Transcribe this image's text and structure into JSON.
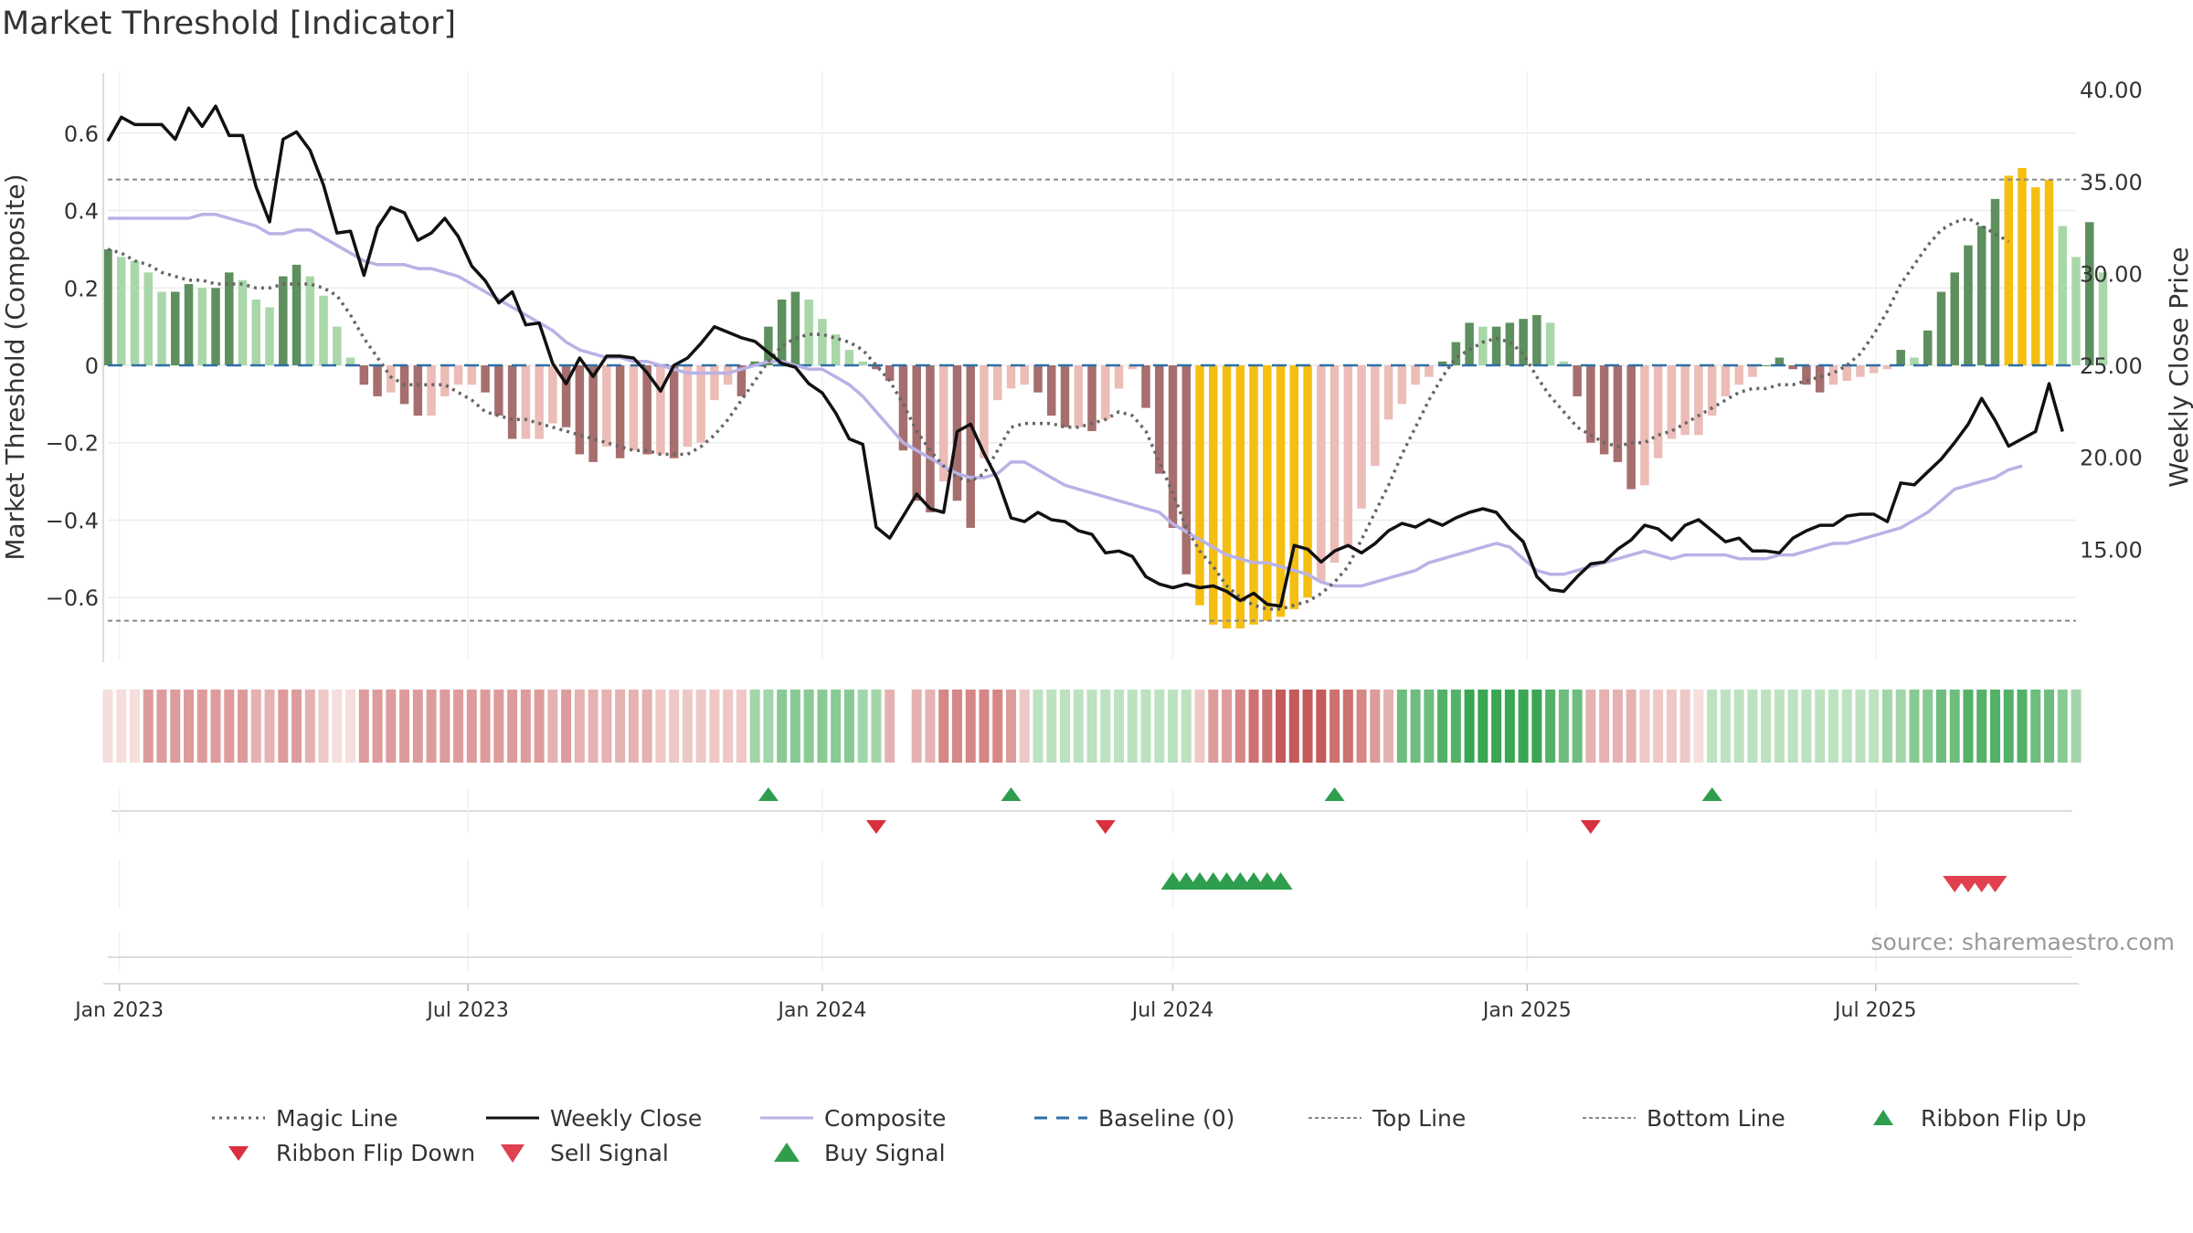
{
  "title": "Market Threshold [Indicator]",
  "source_text": "source: sharemaestro.com",
  "colors": {
    "bar_pos_light": "#a9d7a9",
    "bar_pos_dark": "#5e8f5e",
    "bar_neg_light": "#ecbcb7",
    "bar_neg_dark": "#a76e6e",
    "bar_extreme": "#f5bf12",
    "weekly_close": "#111111",
    "composite": "#b9b2e6",
    "magic": "#666666",
    "baseline": "#2f6fa6",
    "threshold": "#888888",
    "up_marker": "#2e9e4e",
    "down_marker": "#d9303f",
    "sell_marker": "#e0404f"
  },
  "legend": [
    {
      "key": "magic",
      "label": "Magic Line",
      "symbol": "dotted-line",
      "color": "#666666"
    },
    {
      "key": "close",
      "label": "Weekly Close",
      "symbol": "solid-line",
      "color": "#111111"
    },
    {
      "key": "composite",
      "label": "Composite",
      "symbol": "solid-line",
      "color": "#b9b2e6"
    },
    {
      "key": "baseline",
      "label": "Baseline (0)",
      "symbol": "dashed-line",
      "color": "#2f6fa6"
    },
    {
      "key": "top",
      "label": "Top Line",
      "symbol": "dotted-line",
      "color": "#888888"
    },
    {
      "key": "bottom",
      "label": "Bottom Line",
      "symbol": "dotted-line",
      "color": "#888888"
    },
    {
      "key": "flip_up",
      "label": "Ribbon Flip Up",
      "symbol": "triangle-up",
      "color": "#2e9e4e"
    },
    {
      "key": "flip_down",
      "label": "Ribbon Flip Down",
      "symbol": "triangle-down",
      "color": "#d9303f"
    },
    {
      "key": "sell",
      "label": "Sell Signal",
      "symbol": "triangle-down",
      "color": "#e0404f"
    },
    {
      "key": "buy",
      "label": "Buy Signal",
      "symbol": "triangle-up",
      "color": "#2e9e4e"
    }
  ],
  "chart_data": {
    "type": "bar",
    "title": "Market Threshold [Indicator]",
    "ylabel": "Market Threshold (Composite)",
    "y2label": "Weekly Close Price",
    "ylim": [
      -0.76,
      0.76
    ],
    "y2lim": [
      9.0,
      41.0
    ],
    "yticks": [
      0.6,
      0.4,
      0.2,
      0,
      -0.2,
      -0.4,
      -0.6
    ],
    "ytick_labels": [
      "0.6",
      "0.4",
      "0.2",
      "0",
      "−0.2",
      "−0.4",
      "−0.6"
    ],
    "y2ticks": [
      40,
      35,
      30,
      25,
      20,
      15
    ],
    "y2tick_labels": [
      "40.00",
      "35.00",
      "30.00",
      "25.00",
      "20.00",
      "15.00"
    ],
    "xticks": [
      "2023-01-01",
      "2023-07-01",
      "2024-01-01",
      "2024-07-01",
      "2025-01-01",
      "2025-07-01"
    ],
    "xtick_labels": [
      "Jan 2023",
      "Jul 2023",
      "Jan 2024",
      "Jul 2024",
      "Jan 2025",
      "Jul 2025"
    ],
    "x_start": "2022-12-26",
    "x_end": "2025-10-13",
    "top_line": 0.48,
    "bottom_line": -0.66,
    "baseline": 0,
    "grid": true,
    "legend_position": "bottom",
    "composite_bars": [
      0.3,
      0.28,
      0.27,
      0.24,
      0.19,
      0.19,
      0.21,
      0.2,
      0.2,
      0.24,
      0.22,
      0.17,
      0.15,
      0.23,
      0.26,
      0.23,
      0.18,
      0.1,
      0.02,
      -0.05,
      -0.08,
      -0.07,
      -0.1,
      -0.13,
      -0.13,
      -0.08,
      -0.05,
      -0.05,
      -0.07,
      -0.13,
      -0.19,
      -0.19,
      -0.19,
      -0.15,
      -0.16,
      -0.23,
      -0.25,
      -0.21,
      -0.24,
      -0.22,
      -0.23,
      -0.23,
      -0.24,
      -0.21,
      -0.2,
      -0.09,
      -0.05,
      -0.08,
      0.01,
      0.1,
      0.17,
      0.19,
      0.17,
      0.12,
      0.08,
      0.04,
      0.01,
      -0.01,
      -0.04,
      -0.22,
      -0.35,
      -0.38,
      -0.3,
      -0.35,
      -0.42,
      -0.24,
      -0.09,
      -0.06,
      -0.05,
      -0.07,
      -0.13,
      -0.16,
      -0.16,
      -0.17,
      -0.14,
      -0.06,
      -0.01,
      -0.11,
      -0.28,
      -0.42,
      -0.54,
      -0.62,
      -0.67,
      -0.68,
      -0.68,
      -0.67,
      -0.66,
      -0.65,
      -0.63,
      -0.6,
      -0.56,
      -0.51,
      -0.47,
      -0.37,
      -0.26,
      -0.14,
      -0.1,
      -0.05,
      -0.03,
      0.01,
      0.06,
      0.11,
      0.1,
      0.1,
      0.11,
      0.12,
      0.13,
      0.11,
      0.01,
      -0.08,
      -0.2,
      -0.23,
      -0.25,
      -0.32,
      -0.31,
      -0.24,
      -0.19,
      -0.18,
      -0.18,
      -0.13,
      -0.08,
      -0.05,
      -0.03,
      0.0,
      0.02,
      -0.01,
      -0.05,
      -0.07,
      -0.05,
      -0.04,
      -0.03,
      -0.02,
      -0.01,
      0.04,
      0.02,
      0.09,
      0.19,
      0.24,
      0.31,
      0.36,
      0.43,
      0.49,
      0.51,
      0.46,
      0.48,
      0.36,
      0.28,
      0.37,
      0.24
    ],
    "weekly_close": [
      37.2,
      38.5,
      38.1,
      38.1,
      38.1,
      37.3,
      39.0,
      38.0,
      39.1,
      37.5,
      37.5,
      34.7,
      32.8,
      37.3,
      37.7,
      36.7,
      34.8,
      32.2,
      32.3,
      29.9,
      32.5,
      33.6,
      33.3,
      31.8,
      32.2,
      33.0,
      32.0,
      30.4,
      29.6,
      28.4,
      29.0,
      27.2,
      27.3,
      25.1,
      24.0,
      25.4,
      24.4,
      25.5,
      25.5,
      25.4,
      24.6,
      23.6,
      25.0,
      25.4,
      26.2,
      27.1,
      26.8,
      26.5,
      26.3,
      25.7,
      25.1,
      24.9,
      24.0,
      23.5,
      22.4,
      21.0,
      20.7,
      16.2,
      15.6,
      16.8,
      18.0,
      17.2,
      17.0,
      21.4,
      21.8,
      20.2,
      18.8,
      16.7,
      16.5,
      17.0,
      16.6,
      16.5,
      16.0,
      15.8,
      14.8,
      14.9,
      14.6,
      13.5,
      13.1,
      12.9,
      13.1,
      12.9,
      13.0,
      12.7,
      12.2,
      12.6,
      12.0,
      11.9,
      15.2,
      15.0,
      14.3,
      14.9,
      15.2,
      14.8,
      15.3,
      16.0,
      16.4,
      16.2,
      16.6,
      16.3,
      16.7,
      17.0,
      17.2,
      17.0,
      16.1,
      15.4,
      13.5,
      12.8,
      12.7,
      13.5,
      14.2,
      14.3,
      15.0,
      15.5,
      16.3,
      16.1,
      15.5,
      16.3,
      16.6,
      16.0,
      15.4,
      15.6,
      14.9,
      14.9,
      14.8,
      15.6,
      16.0,
      16.3,
      16.3,
      16.8,
      16.9,
      16.9,
      16.5,
      18.6,
      18.5,
      19.2,
      19.9,
      20.8,
      21.8,
      23.2,
      22.0,
      20.6,
      21.0,
      21.4,
      24.0,
      21.4
    ],
    "composite_line": [
      0.38,
      0.38,
      0.38,
      0.38,
      0.38,
      0.38,
      0.38,
      0.39,
      0.39,
      0.38,
      0.37,
      0.36,
      0.34,
      0.34,
      0.35,
      0.35,
      0.33,
      0.31,
      0.29,
      0.27,
      0.26,
      0.26,
      0.26,
      0.25,
      0.25,
      0.24,
      0.23,
      0.21,
      0.19,
      0.17,
      0.15,
      0.13,
      0.11,
      0.09,
      0.06,
      0.04,
      0.03,
      0.02,
      0.02,
      0.01,
      0.01,
      0.0,
      -0.01,
      -0.02,
      -0.02,
      -0.02,
      -0.02,
      -0.01,
      0.0,
      0.01,
      0.01,
      0.0,
      -0.01,
      -0.01,
      -0.03,
      -0.05,
      -0.08,
      -0.12,
      -0.16,
      -0.2,
      -0.22,
      -0.24,
      -0.26,
      -0.28,
      -0.29,
      -0.29,
      -0.28,
      -0.25,
      -0.25,
      -0.27,
      -0.29,
      -0.31,
      -0.32,
      -0.33,
      -0.34,
      -0.35,
      -0.36,
      -0.37,
      -0.38,
      -0.41,
      -0.43,
      -0.45,
      -0.47,
      -0.49,
      -0.5,
      -0.51,
      -0.51,
      -0.52,
      -0.53,
      -0.54,
      -0.56,
      -0.57,
      -0.57,
      -0.57,
      -0.56,
      -0.55,
      -0.54,
      -0.53,
      -0.51,
      -0.5,
      -0.49,
      -0.48,
      -0.47,
      -0.46,
      -0.47,
      -0.5,
      -0.53,
      -0.54,
      -0.54,
      -0.53,
      -0.52,
      -0.51,
      -0.5,
      -0.49,
      -0.48,
      -0.49,
      -0.5,
      -0.49,
      -0.49,
      -0.49,
      -0.49,
      -0.5,
      -0.5,
      -0.5,
      -0.49,
      -0.49,
      -0.48,
      -0.47,
      -0.46,
      -0.46,
      -0.45,
      -0.44,
      -0.43,
      -0.42,
      -0.4,
      -0.38,
      -0.35,
      -0.32,
      -0.31,
      -0.3,
      -0.29,
      -0.27,
      -0.26
    ],
    "magic_line": [
      0.3,
      0.29,
      0.27,
      0.26,
      0.24,
      0.23,
      0.22,
      0.22,
      0.21,
      0.21,
      0.21,
      0.2,
      0.2,
      0.21,
      0.21,
      0.21,
      0.2,
      0.18,
      0.13,
      0.07,
      0.02,
      -0.03,
      -0.05,
      -0.05,
      -0.05,
      -0.05,
      -0.07,
      -0.09,
      -0.12,
      -0.13,
      -0.14,
      -0.14,
      -0.15,
      -0.16,
      -0.17,
      -0.18,
      -0.19,
      -0.2,
      -0.21,
      -0.22,
      -0.22,
      -0.23,
      -0.23,
      -0.23,
      -0.21,
      -0.18,
      -0.14,
      -0.09,
      -0.04,
      0.01,
      0.05,
      0.07,
      0.08,
      0.08,
      0.07,
      0.06,
      0.04,
      0.0,
      -0.04,
      -0.1,
      -0.17,
      -0.22,
      -0.26,
      -0.29,
      -0.3,
      -0.28,
      -0.22,
      -0.16,
      -0.15,
      -0.15,
      -0.15,
      -0.16,
      -0.16,
      -0.15,
      -0.14,
      -0.12,
      -0.13,
      -0.17,
      -0.25,
      -0.33,
      -0.42,
      -0.48,
      -0.52,
      -0.57,
      -0.6,
      -0.62,
      -0.63,
      -0.63,
      -0.62,
      -0.61,
      -0.59,
      -0.56,
      -0.52,
      -0.45,
      -0.38,
      -0.31,
      -0.23,
      -0.16,
      -0.09,
      -0.03,
      0.02,
      0.04,
      0.06,
      0.07,
      0.06,
      0.03,
      -0.03,
      -0.08,
      -0.12,
      -0.16,
      -0.18,
      -0.2,
      -0.21,
      -0.2,
      -0.2,
      -0.18,
      -0.17,
      -0.15,
      -0.13,
      -0.11,
      -0.09,
      -0.07,
      -0.06,
      -0.06,
      -0.05,
      -0.05,
      -0.04,
      -0.03,
      -0.02,
      0.0,
      0.03,
      0.08,
      0.14,
      0.21,
      0.26,
      0.31,
      0.35,
      0.37,
      0.38,
      0.36,
      0.34,
      0.32
    ],
    "ribbon_levels": [
      -0.2,
      -0.2,
      -0.2,
      -0.5,
      -0.5,
      -0.5,
      -0.5,
      -0.5,
      -0.5,
      -0.5,
      -0.5,
      -0.4,
      -0.4,
      -0.5,
      -0.5,
      -0.4,
      -0.3,
      -0.2,
      -0.2,
      -0.5,
      -0.5,
      -0.5,
      -0.5,
      -0.5,
      -0.5,
      -0.5,
      -0.5,
      -0.5,
      -0.5,
      -0.5,
      -0.5,
      -0.5,
      -0.5,
      -0.4,
      -0.5,
      -0.4,
      -0.4,
      -0.4,
      -0.4,
      -0.4,
      -0.4,
      -0.3,
      -0.3,
      -0.3,
      -0.3,
      -0.3,
      -0.3,
      -0.3,
      0.4,
      0.4,
      0.5,
      0.5,
      0.5,
      0.5,
      0.5,
      0.5,
      0.4,
      0.4,
      -0.4,
      -0.4,
      -0.4,
      -0.4,
      -0.6,
      -0.6,
      -0.6,
      -0.6,
      -0.6,
      -0.5,
      -0.3,
      0.3,
      0.3,
      0.3,
      0.3,
      0.3,
      0.3,
      0.3,
      0.3,
      0.3,
      0.3,
      0.3,
      0.3,
      -0.3,
      -0.5,
      -0.5,
      -0.6,
      -0.7,
      -0.7,
      -0.8,
      -0.8,
      -0.8,
      -0.8,
      -0.7,
      -0.7,
      -0.6,
      -0.5,
      -0.4,
      0.6,
      0.6,
      0.6,
      0.7,
      0.7,
      0.8,
      0.8,
      0.8,
      0.8,
      0.8,
      0.8,
      0.7,
      0.6,
      0.6,
      -0.4,
      -0.4,
      -0.4,
      -0.4,
      -0.3,
      -0.3,
      -0.3,
      -0.3,
      -0.2,
      0.3,
      0.3,
      0.3,
      0.3,
      0.3,
      0.3,
      0.3,
      0.3,
      0.3,
      0.3,
      0.3,
      0.3,
      0.3,
      0.4,
      0.4,
      0.5,
      0.5,
      0.6,
      0.6,
      0.7,
      0.7,
      0.7,
      0.7,
      0.7,
      0.6,
      0.6,
      0.5,
      0.4
    ],
    "ribbon_gap_at": 59,
    "ribbon_flip_up": [
      "2023-12-04",
      "2024-04-08",
      "2024-09-23",
      "2025-04-07"
    ],
    "ribbon_flip_down": [
      "2024-01-29",
      "2024-05-27",
      "2025-02-03"
    ],
    "buy_signal": [
      "2024-07-01",
      "2024-07-08",
      "2024-07-15",
      "2024-07-22",
      "2024-07-29",
      "2024-08-05",
      "2024-08-12",
      "2024-08-19",
      "2024-08-26"
    ],
    "sell_signal": [
      "2025-08-11",
      "2025-08-18",
      "2025-08-25",
      "2025-09-01"
    ]
  }
}
